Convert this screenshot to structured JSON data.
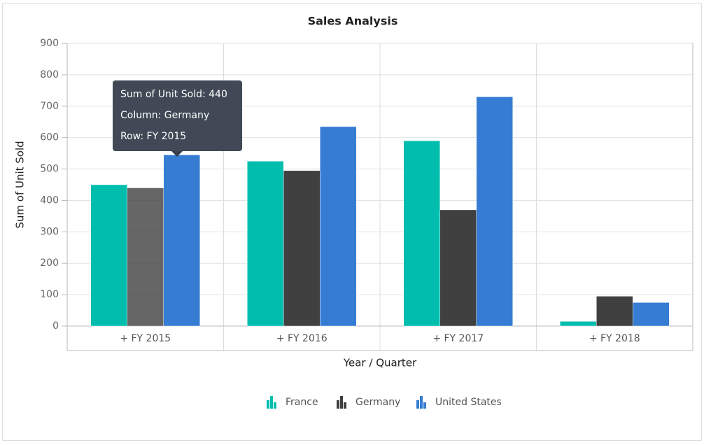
{
  "chart_data": {
    "type": "bar",
    "title": "Sales Analysis",
    "x_label": "Year / Quarter",
    "y_label": "Sum of Unit Sold",
    "categories": [
      "+ FY 2015",
      "+ FY 2016",
      "+ FY 2017",
      "+ FY 2018"
    ],
    "series": [
      {
        "name": "France",
        "color": "#00bdae",
        "values": [
          450,
          525,
          590,
          15
        ]
      },
      {
        "name": "Germany",
        "color": "#404041",
        "values": [
          440,
          495,
          370,
          95
        ]
      },
      {
        "name": "United States",
        "color": "#357cd2",
        "values": [
          545,
          635,
          730,
          75
        ]
      }
    ],
    "ylim": [
      0,
      900
    ],
    "yticks": [
      0,
      100,
      200,
      300,
      400,
      500,
      600,
      700,
      800,
      900
    ],
    "grid": true,
    "legend": "bottom",
    "tooltip": [
      "Sum of Unit Sold: 440",
      "Column: Germany",
      "Row: FY 2015"
    ]
  }
}
